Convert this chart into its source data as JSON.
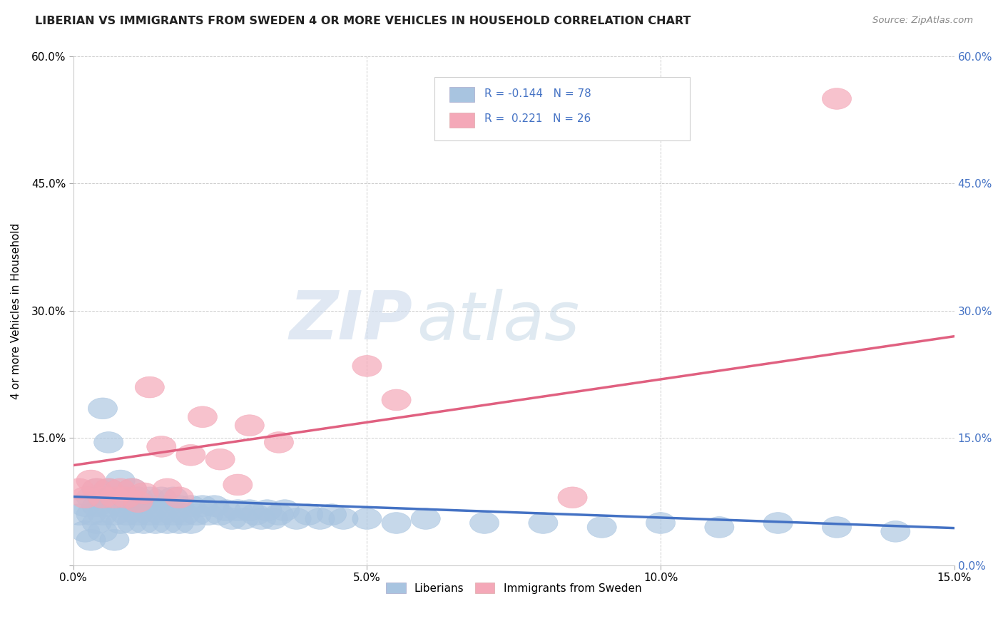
{
  "title": "LIBERIAN VS IMMIGRANTS FROM SWEDEN 4 OR MORE VEHICLES IN HOUSEHOLD CORRELATION CHART",
  "source": "Source: ZipAtlas.com",
  "ylabel_label": "4 or more Vehicles in Household",
  "legend_labels": [
    "Liberians",
    "Immigrants from Sweden"
  ],
  "R_blue": -0.144,
  "N_blue": 78,
  "R_pink": 0.221,
  "N_pink": 26,
  "xlim": [
    0.0,
    0.15
  ],
  "ylim": [
    0.0,
    0.6
  ],
  "blue_color": "#a8c4e0",
  "pink_color": "#f4a8b8",
  "blue_line_color": "#4472c4",
  "pink_line_color": "#e06080",
  "watermark_zip": "ZIP",
  "watermark_atlas": "atlas",
  "background_color": "#ffffff",
  "blue_x": [
    0.001,
    0.002,
    0.002,
    0.003,
    0.003,
    0.003,
    0.004,
    0.004,
    0.004,
    0.005,
    0.005,
    0.005,
    0.006,
    0.006,
    0.007,
    0.007,
    0.007,
    0.008,
    0.008,
    0.008,
    0.009,
    0.009,
    0.01,
    0.01,
    0.01,
    0.011,
    0.011,
    0.012,
    0.012,
    0.013,
    0.013,
    0.014,
    0.014,
    0.015,
    0.015,
    0.016,
    0.016,
    0.017,
    0.017,
    0.018,
    0.018,
    0.019,
    0.02,
    0.02,
    0.021,
    0.022,
    0.023,
    0.024,
    0.025,
    0.026,
    0.027,
    0.028,
    0.029,
    0.03,
    0.031,
    0.032,
    0.033,
    0.034,
    0.035,
    0.036,
    0.038,
    0.04,
    0.042,
    0.044,
    0.046,
    0.05,
    0.055,
    0.06,
    0.07,
    0.08,
    0.09,
    0.1,
    0.11,
    0.12,
    0.13,
    0.14,
    0.005,
    0.006
  ],
  "blue_y": [
    0.06,
    0.07,
    0.04,
    0.08,
    0.06,
    0.03,
    0.09,
    0.07,
    0.05,
    0.08,
    0.06,
    0.04,
    0.09,
    0.07,
    0.08,
    0.06,
    0.03,
    0.1,
    0.07,
    0.05,
    0.08,
    0.06,
    0.09,
    0.07,
    0.05,
    0.08,
    0.06,
    0.07,
    0.05,
    0.08,
    0.06,
    0.07,
    0.05,
    0.08,
    0.06,
    0.07,
    0.05,
    0.08,
    0.06,
    0.07,
    0.05,
    0.06,
    0.07,
    0.05,
    0.06,
    0.07,
    0.06,
    0.07,
    0.06,
    0.065,
    0.055,
    0.065,
    0.055,
    0.065,
    0.06,
    0.055,
    0.065,
    0.055,
    0.06,
    0.065,
    0.055,
    0.06,
    0.055,
    0.06,
    0.055,
    0.055,
    0.05,
    0.055,
    0.05,
    0.05,
    0.045,
    0.05,
    0.045,
    0.05,
    0.045,
    0.04,
    0.185,
    0.145
  ],
  "pink_x": [
    0.001,
    0.002,
    0.003,
    0.004,
    0.005,
    0.006,
    0.007,
    0.008,
    0.009,
    0.01,
    0.011,
    0.012,
    0.013,
    0.015,
    0.016,
    0.018,
    0.02,
    0.022,
    0.025,
    0.028,
    0.03,
    0.035,
    0.05,
    0.055,
    0.085,
    0.13
  ],
  "pink_y": [
    0.09,
    0.08,
    0.1,
    0.09,
    0.08,
    0.09,
    0.08,
    0.09,
    0.08,
    0.09,
    0.075,
    0.085,
    0.21,
    0.14,
    0.09,
    0.08,
    0.13,
    0.175,
    0.125,
    0.095,
    0.165,
    0.145,
    0.235,
    0.195,
    0.08,
    0.55
  ]
}
